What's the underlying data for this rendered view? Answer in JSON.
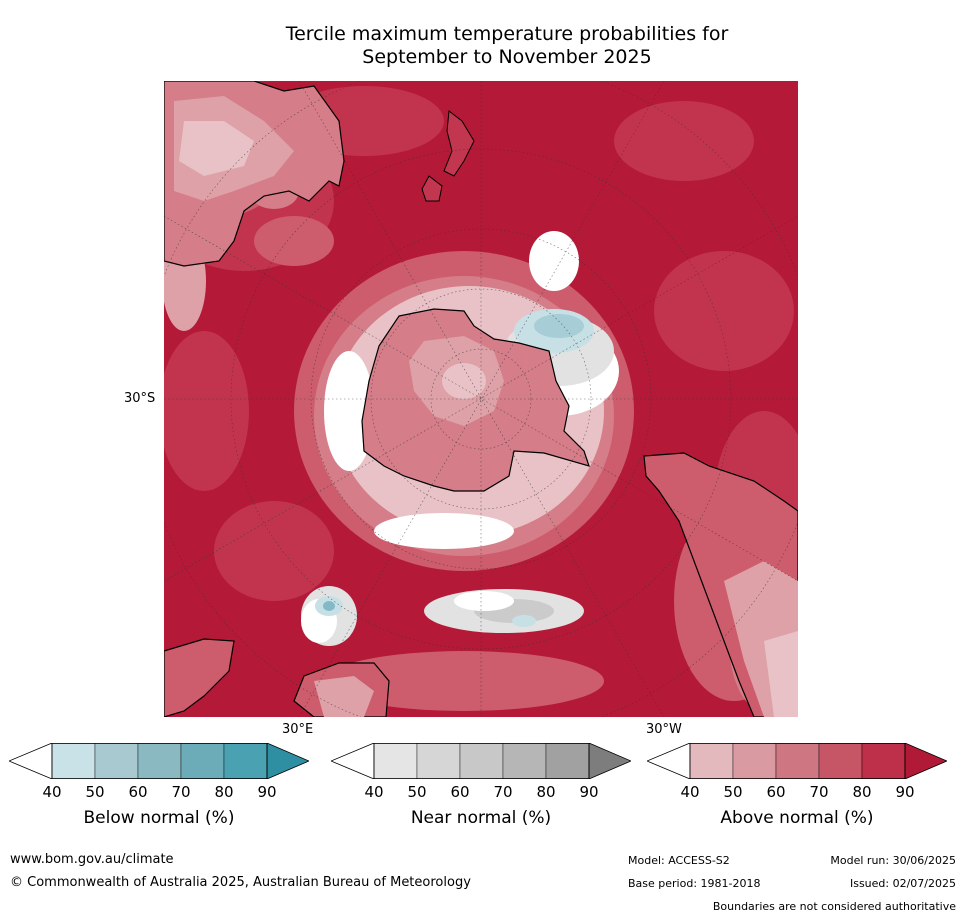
{
  "title": {
    "line1": "Tercile maximum temperature probabilities for",
    "line2": "September to November 2025"
  },
  "map": {
    "projection": "south-polar",
    "lat_label": "30°S",
    "lon_label_east": "30°E",
    "lon_label_west": "30°W",
    "colors": {
      "above_90": "#b41a38",
      "above_80": "#c3364f",
      "above_70": "#cd5c6c",
      "above_60": "#d57d88",
      "above_50": "#dea1a8",
      "above_40": "#e8c2c6",
      "near_50": "#e2e2e2",
      "near_60": "#cbcbcb",
      "near_80": "#a9a9a9",
      "below_50": "#c7e0e6",
      "below_60": "#a7cdd6",
      "below_70": "#83b9c6",
      "neutral": "#ffffff",
      "coastline": "#000000"
    }
  },
  "colorbars": [
    {
      "id": "below",
      "label": "Below normal (%)",
      "ticks": [
        "40",
        "50",
        "60",
        "70",
        "80",
        "90"
      ],
      "colors": [
        "#c9e2e8",
        "#a7c9cf",
        "#8ab9c1",
        "#6bacb8",
        "#4aa1b1",
        "#2e8ea2"
      ]
    },
    {
      "id": "near",
      "label": "Near normal (%)",
      "ticks": [
        "40",
        "50",
        "60",
        "70",
        "80",
        "90"
      ],
      "colors": [
        "#e5e5e5",
        "#d6d6d6",
        "#c8c8c8",
        "#b6b6b6",
        "#a1a1a1",
        "#7d7d7d"
      ]
    },
    {
      "id": "above",
      "label": "Above normal (%)",
      "ticks": [
        "40",
        "50",
        "60",
        "70",
        "80",
        "90"
      ],
      "colors": [
        "#e3b9be",
        "#d99aa2",
        "#ce7681",
        "#c65566",
        "#be3049",
        "#b01a36"
      ]
    }
  ],
  "footer": {
    "website": "www.bom.gov.au/climate",
    "copyright": "© Commonwealth of Australia 2025, Australian Bureau of Meteorology",
    "model": "Model: ACCESS-S2",
    "model_run": "Model run: 30/06/2025",
    "base_period": "Base period: 1981-2018",
    "issued": "Issued: 02/07/2025",
    "disclaimer": "Boundaries are not considered authoritative"
  }
}
